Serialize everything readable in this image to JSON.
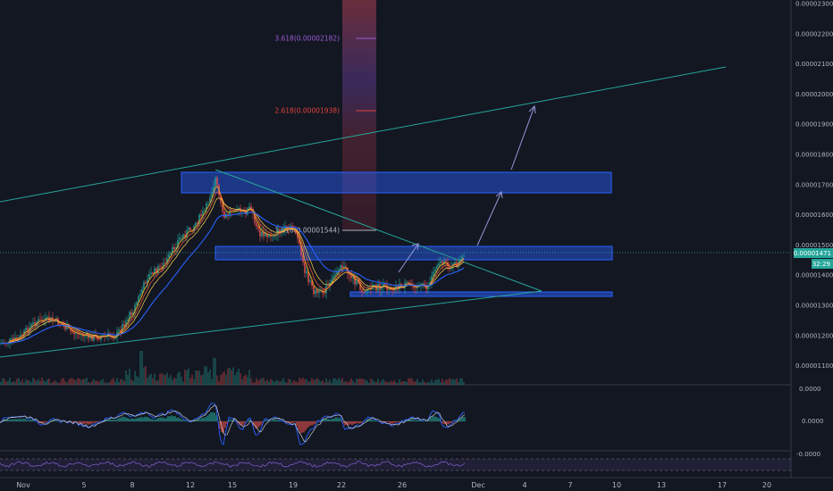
{
  "chart_data": [
    {
      "type": "line",
      "panel": "price",
      "y_ticks": [
        "0.00002300",
        "0.00002200",
        "0.00002100",
        "0.00002000",
        "0.00001900",
        "0.00001800",
        "0.00001700",
        "0.00001600",
        "0.00001500",
        "0.00001400",
        "0.00001300",
        "0.00001200",
        "0.00001100"
      ],
      "ylim": [
        1.05e-05,
        2.34e-05
      ],
      "x_ticks": [
        "Nov",
        "5",
        "8",
        "12",
        "15",
        "19",
        "22",
        "26",
        "Dec",
        "4",
        "7",
        "10",
        "13",
        "17",
        "20"
      ],
      "current_price": "0.00001471",
      "countdown": "32:29",
      "fib_labels": [
        {
          "text": "3.618(0.00002182)",
          "color": "#9c5bd6"
        },
        {
          "text": "2.618(0.00001938)",
          "color": "#e0413a"
        },
        {
          "text": "1.618(0.00001544)",
          "color": "#b2b5be"
        }
      ],
      "colors": {
        "bull": "#26a69a",
        "bear": "#ef5350",
        "ema_fast": "#f5a623",
        "ema_slow": "#2962ff",
        "trend": "#26a69a",
        "zone": "#2962ff",
        "arrow": "#9598d8"
      }
    },
    {
      "type": "line",
      "panel": "oscillator",
      "y_ticks": [
        "0.0000",
        "0.0000"
      ]
    },
    {
      "type": "area",
      "panel": "rsi",
      "y_ticks": [
        "-0.0000"
      ]
    }
  ]
}
